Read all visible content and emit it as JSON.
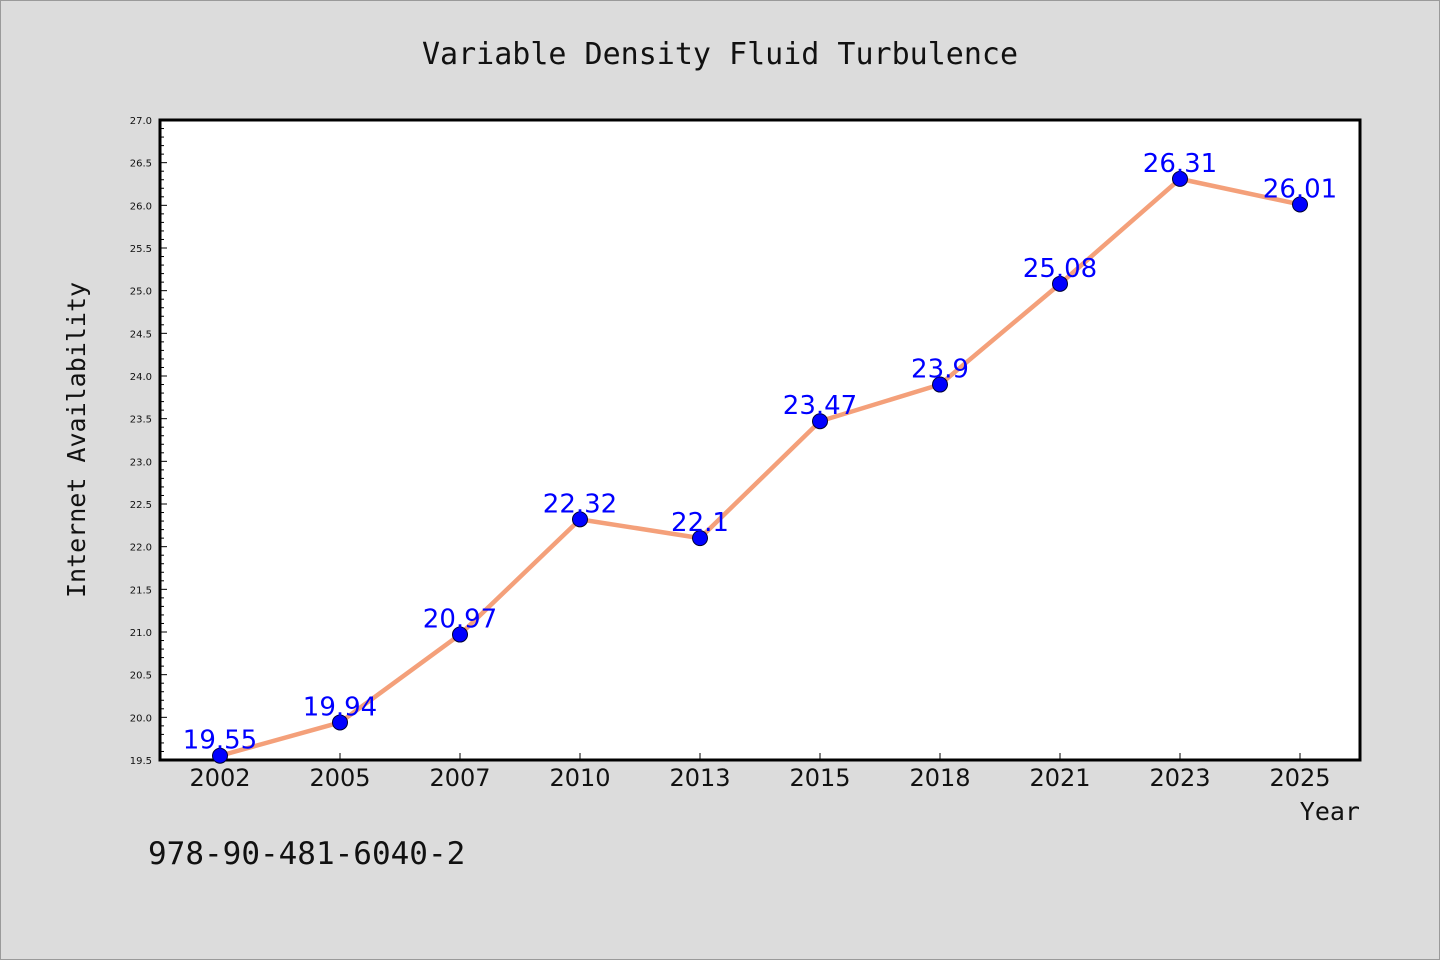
{
  "chart_data": {
    "type": "line",
    "title": "Variable Density Fluid Turbulence",
    "xlabel": "Year",
    "ylabel": "Internet Availability",
    "categories": [
      "2002",
      "2005",
      "2007",
      "2010",
      "2013",
      "2015",
      "2018",
      "2021",
      "2023",
      "2025"
    ],
    "series": [
      {
        "values": [
          19.55,
          19.94,
          20.97,
          22.32,
          22.1,
          23.47,
          23.9,
          25.08,
          26.31,
          26.01
        ],
        "labels": [
          "19.55",
          "19.94",
          "20.97",
          "22.32",
          "22.1",
          "23.47",
          "23.9",
          "25.08",
          "26.31",
          "26.01"
        ],
        "line_color": "#f4a07a",
        "marker_color": "#0000ff"
      }
    ],
    "ylim": [
      19.5,
      27.0
    ],
    "yticks": [
      "19.5",
      "20.0",
      "20.5",
      "21.0",
      "21.5",
      "22.0",
      "22.5",
      "23.0",
      "23.5",
      "24.0",
      "24.5",
      "25.0",
      "25.5",
      "26.0",
      "26.5",
      "27.0"
    ],
    "grid": false,
    "legend": "none"
  },
  "footer": {
    "isbn": "978-90-481-6040-2"
  },
  "colors": {
    "background": "#dcdcdc",
    "plot_background": "#ffffff",
    "line": "#f4a07a",
    "marker": "#0000ff",
    "label": "#0000ff"
  }
}
